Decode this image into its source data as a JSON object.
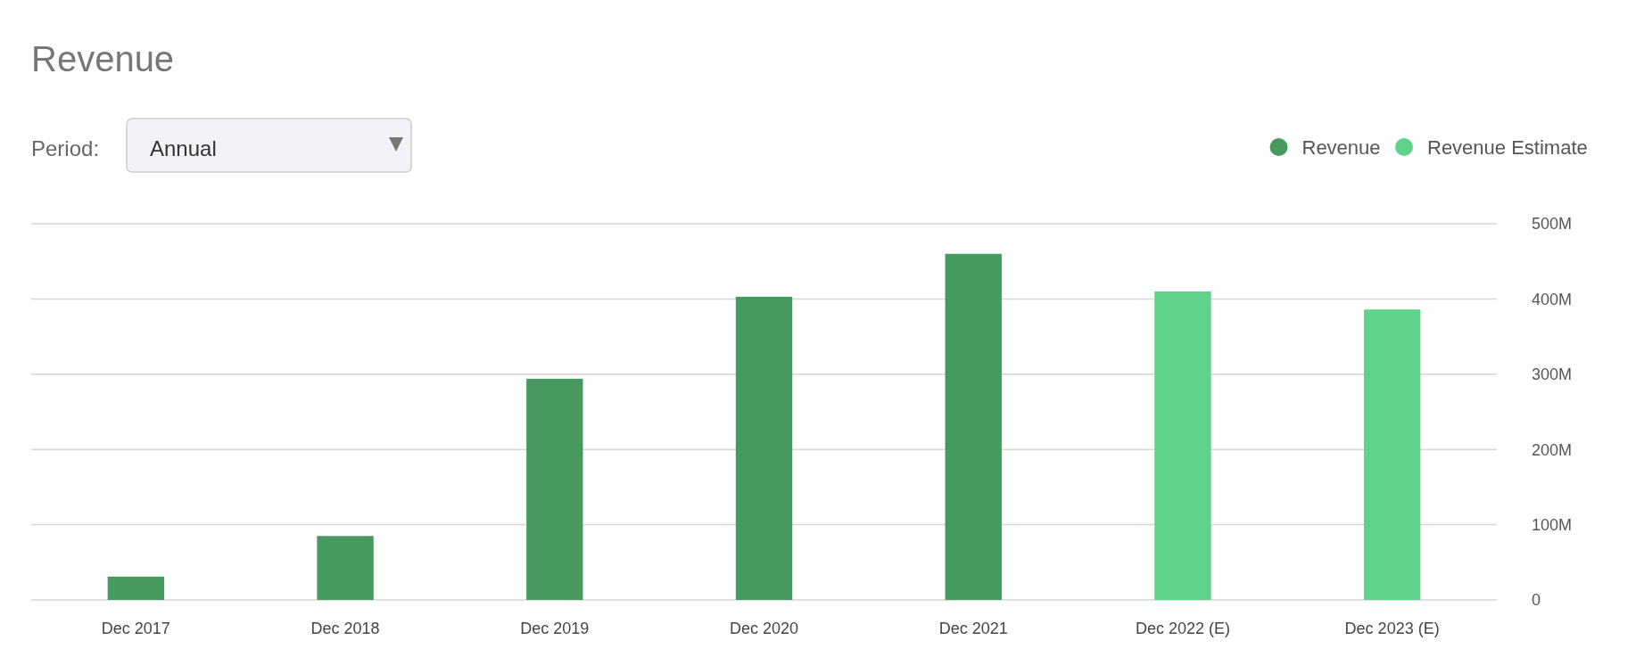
{
  "chart_data": {
    "type": "bar",
    "title": "Revenue",
    "annotations": [
      "Period:",
      "Annual"
    ],
    "categories": [
      "Dec 2017",
      "Dec 2018",
      "Dec 2019",
      "Dec 2020",
      "Dec 2021",
      "Dec 2022 (E)",
      "Dec 2023 (E)"
    ],
    "series": [
      {
        "name": "Revenue",
        "color": "#479a5f",
        "values": [
          31,
          85,
          294,
          403,
          460,
          null,
          null
        ]
      },
      {
        "name": "Revenue Estimate",
        "color": "#5fd38a",
        "values": [
          null,
          null,
          null,
          null,
          null,
          410,
          386
        ]
      }
    ],
    "ylim": [
      0,
      500
    ],
    "yticks": [
      0,
      {
        "value": 100,
        "label": "100M"
      },
      {
        "value": 200,
        "label": "200M"
      },
      {
        "value": 300,
        "label": "300M"
      },
      {
        "value": 400,
        "label": "400M"
      },
      {
        "value": 500,
        "label": "500M"
      }
    ],
    "grid": "y",
    "legend": "top right"
  }
}
